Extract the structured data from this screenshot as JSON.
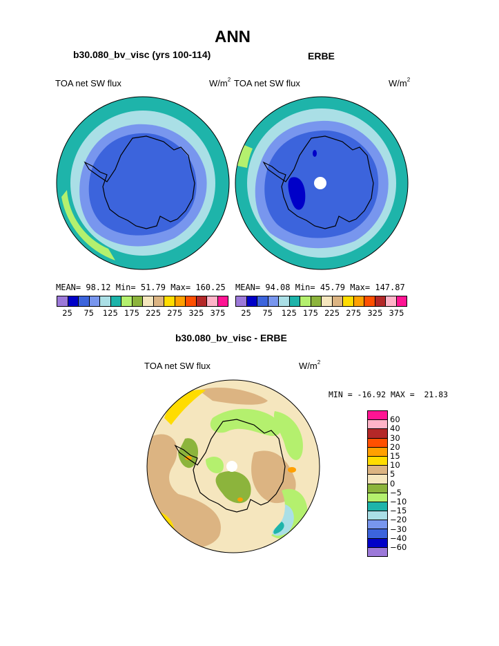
{
  "title": "ANN",
  "panels": [
    {
      "case_label": "b30.080_bv_visc (yrs 100-114)",
      "var_label": "TOA net SW flux",
      "units_base": "W/m",
      "units_sup": "2",
      "mean_label": "MEAN=",
      "mean": "98.12",
      "min_label": "Min=",
      "min": "51.79",
      "max_label": "Max=",
      "max": "160.25"
    },
    {
      "case_label": "ERBE",
      "var_label": "TOA net SW flux",
      "units_base": "W/m",
      "units_sup": "2",
      "mean_label": "MEAN=",
      "mean": "94.08",
      "min_label": "Min=",
      "min": "45.79",
      "max_label": "Max=",
      "max": "147.87"
    }
  ],
  "colorbar_colors": [
    "#9c79d9",
    "#0000c8",
    "#3c64dc",
    "#7896ee",
    "#aadfe6",
    "#1eb4aa",
    "#b4f06e",
    "#8cb43c",
    "#f5e6be",
    "#dcb482",
    "#ffdc00",
    "#ffa000",
    "#ff5000",
    "#b42828",
    "#ffb4c8",
    "#ff1493"
  ],
  "colorbar_ticks": [
    "25",
    "75",
    "125",
    "175",
    "225",
    "275",
    "325",
    "375"
  ],
  "diff": {
    "title": "b30.080_bv_visc - ERBE",
    "var_label": "TOA net SW flux",
    "units_base": "W/m",
    "units_sup": "2",
    "stats": "MIN = -16.92 MAX =  21.83",
    "legend_ticks": [
      "60",
      "40",
      "30",
      "20",
      "15",
      "10",
      "5",
      "0",
      "−5",
      "−10",
      "−15",
      "−20",
      "−30",
      "−40",
      "−60"
    ],
    "legend_colors": [
      "#ff1493",
      "#ffb4c8",
      "#b42828",
      "#ff5000",
      "#ffa000",
      "#ffdc00",
      "#dcb482",
      "#f5e6be",
      "#8cb43c",
      "#b4f06e",
      "#1eb4aa",
      "#aadfe6",
      "#7896ee",
      "#3c64dc",
      "#0000c8",
      "#9c79d9"
    ]
  },
  "chart_data": [
    {
      "type": "heatmap",
      "projection": "polar stereographic (south pole)",
      "title": "b30.080_bv_visc (yrs 100-114)",
      "variable": "TOA net SW flux",
      "units": "W/m2",
      "mean": 98.12,
      "min": 51.79,
      "max": 160.25,
      "levels": [
        25,
        50,
        75,
        100,
        125,
        150,
        175,
        200,
        225,
        250,
        275,
        300,
        325,
        350,
        375
      ]
    },
    {
      "type": "heatmap",
      "projection": "polar stereographic (south pole)",
      "title": "ERBE",
      "variable": "TOA net SW flux",
      "units": "W/m2",
      "mean": 94.08,
      "min": 45.79,
      "max": 147.87,
      "levels": [
        25,
        50,
        75,
        100,
        125,
        150,
        175,
        200,
        225,
        250,
        275,
        300,
        325,
        350,
        375
      ]
    },
    {
      "type": "heatmap",
      "projection": "polar stereographic (south pole)",
      "title": "b30.080_bv_visc - ERBE",
      "variable": "TOA net SW flux",
      "units": "W/m2",
      "min": -16.92,
      "max": 21.83,
      "levels": [
        -60,
        -40,
        -30,
        -20,
        -15,
        -10,
        -5,
        0,
        5,
        10,
        15,
        20,
        30,
        40,
        60
      ]
    }
  ]
}
